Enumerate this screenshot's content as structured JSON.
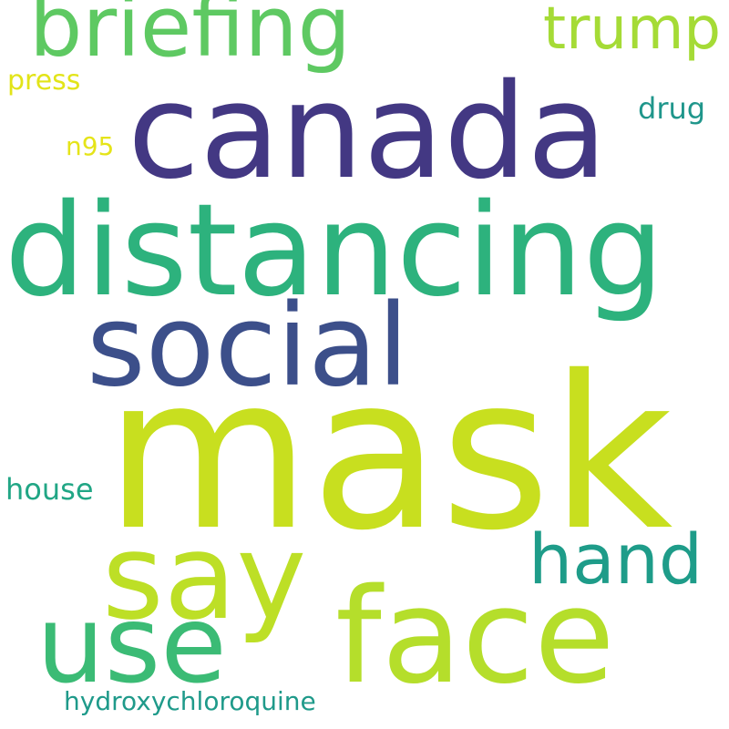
{
  "words": {
    "mask": {
      "text": "mask",
      "color": "#c8df1f"
    },
    "canada": {
      "text": "canada",
      "color": "#433883"
    },
    "distancing": {
      "text": "distancing",
      "color": "#2db27d"
    },
    "social": {
      "text": "social",
      "color": "#3c4f8a"
    },
    "briefing": {
      "text": "briefing",
      "color": "#5ec962"
    },
    "trump": {
      "text": "trump",
      "color": "#a5db36"
    },
    "say": {
      "text": "say",
      "color": "#bddf26"
    },
    "face": {
      "text": "face",
      "color": "#b5de2b"
    },
    "use": {
      "text": "use",
      "color": "#3bbb75"
    },
    "hand": {
      "text": "hand",
      "color": "#1e9c89"
    },
    "press": {
      "text": "press",
      "color": "#e2e418"
    },
    "drug": {
      "text": "drug",
      "color": "#1f968b"
    },
    "n95": {
      "text": "n95",
      "color": "#e5e419"
    },
    "house": {
      "text": "house",
      "color": "#21a685"
    },
    "hydroxychloroquine": {
      "text": "hydroxychloroquine",
      "color": "#1f9a8a"
    }
  }
}
